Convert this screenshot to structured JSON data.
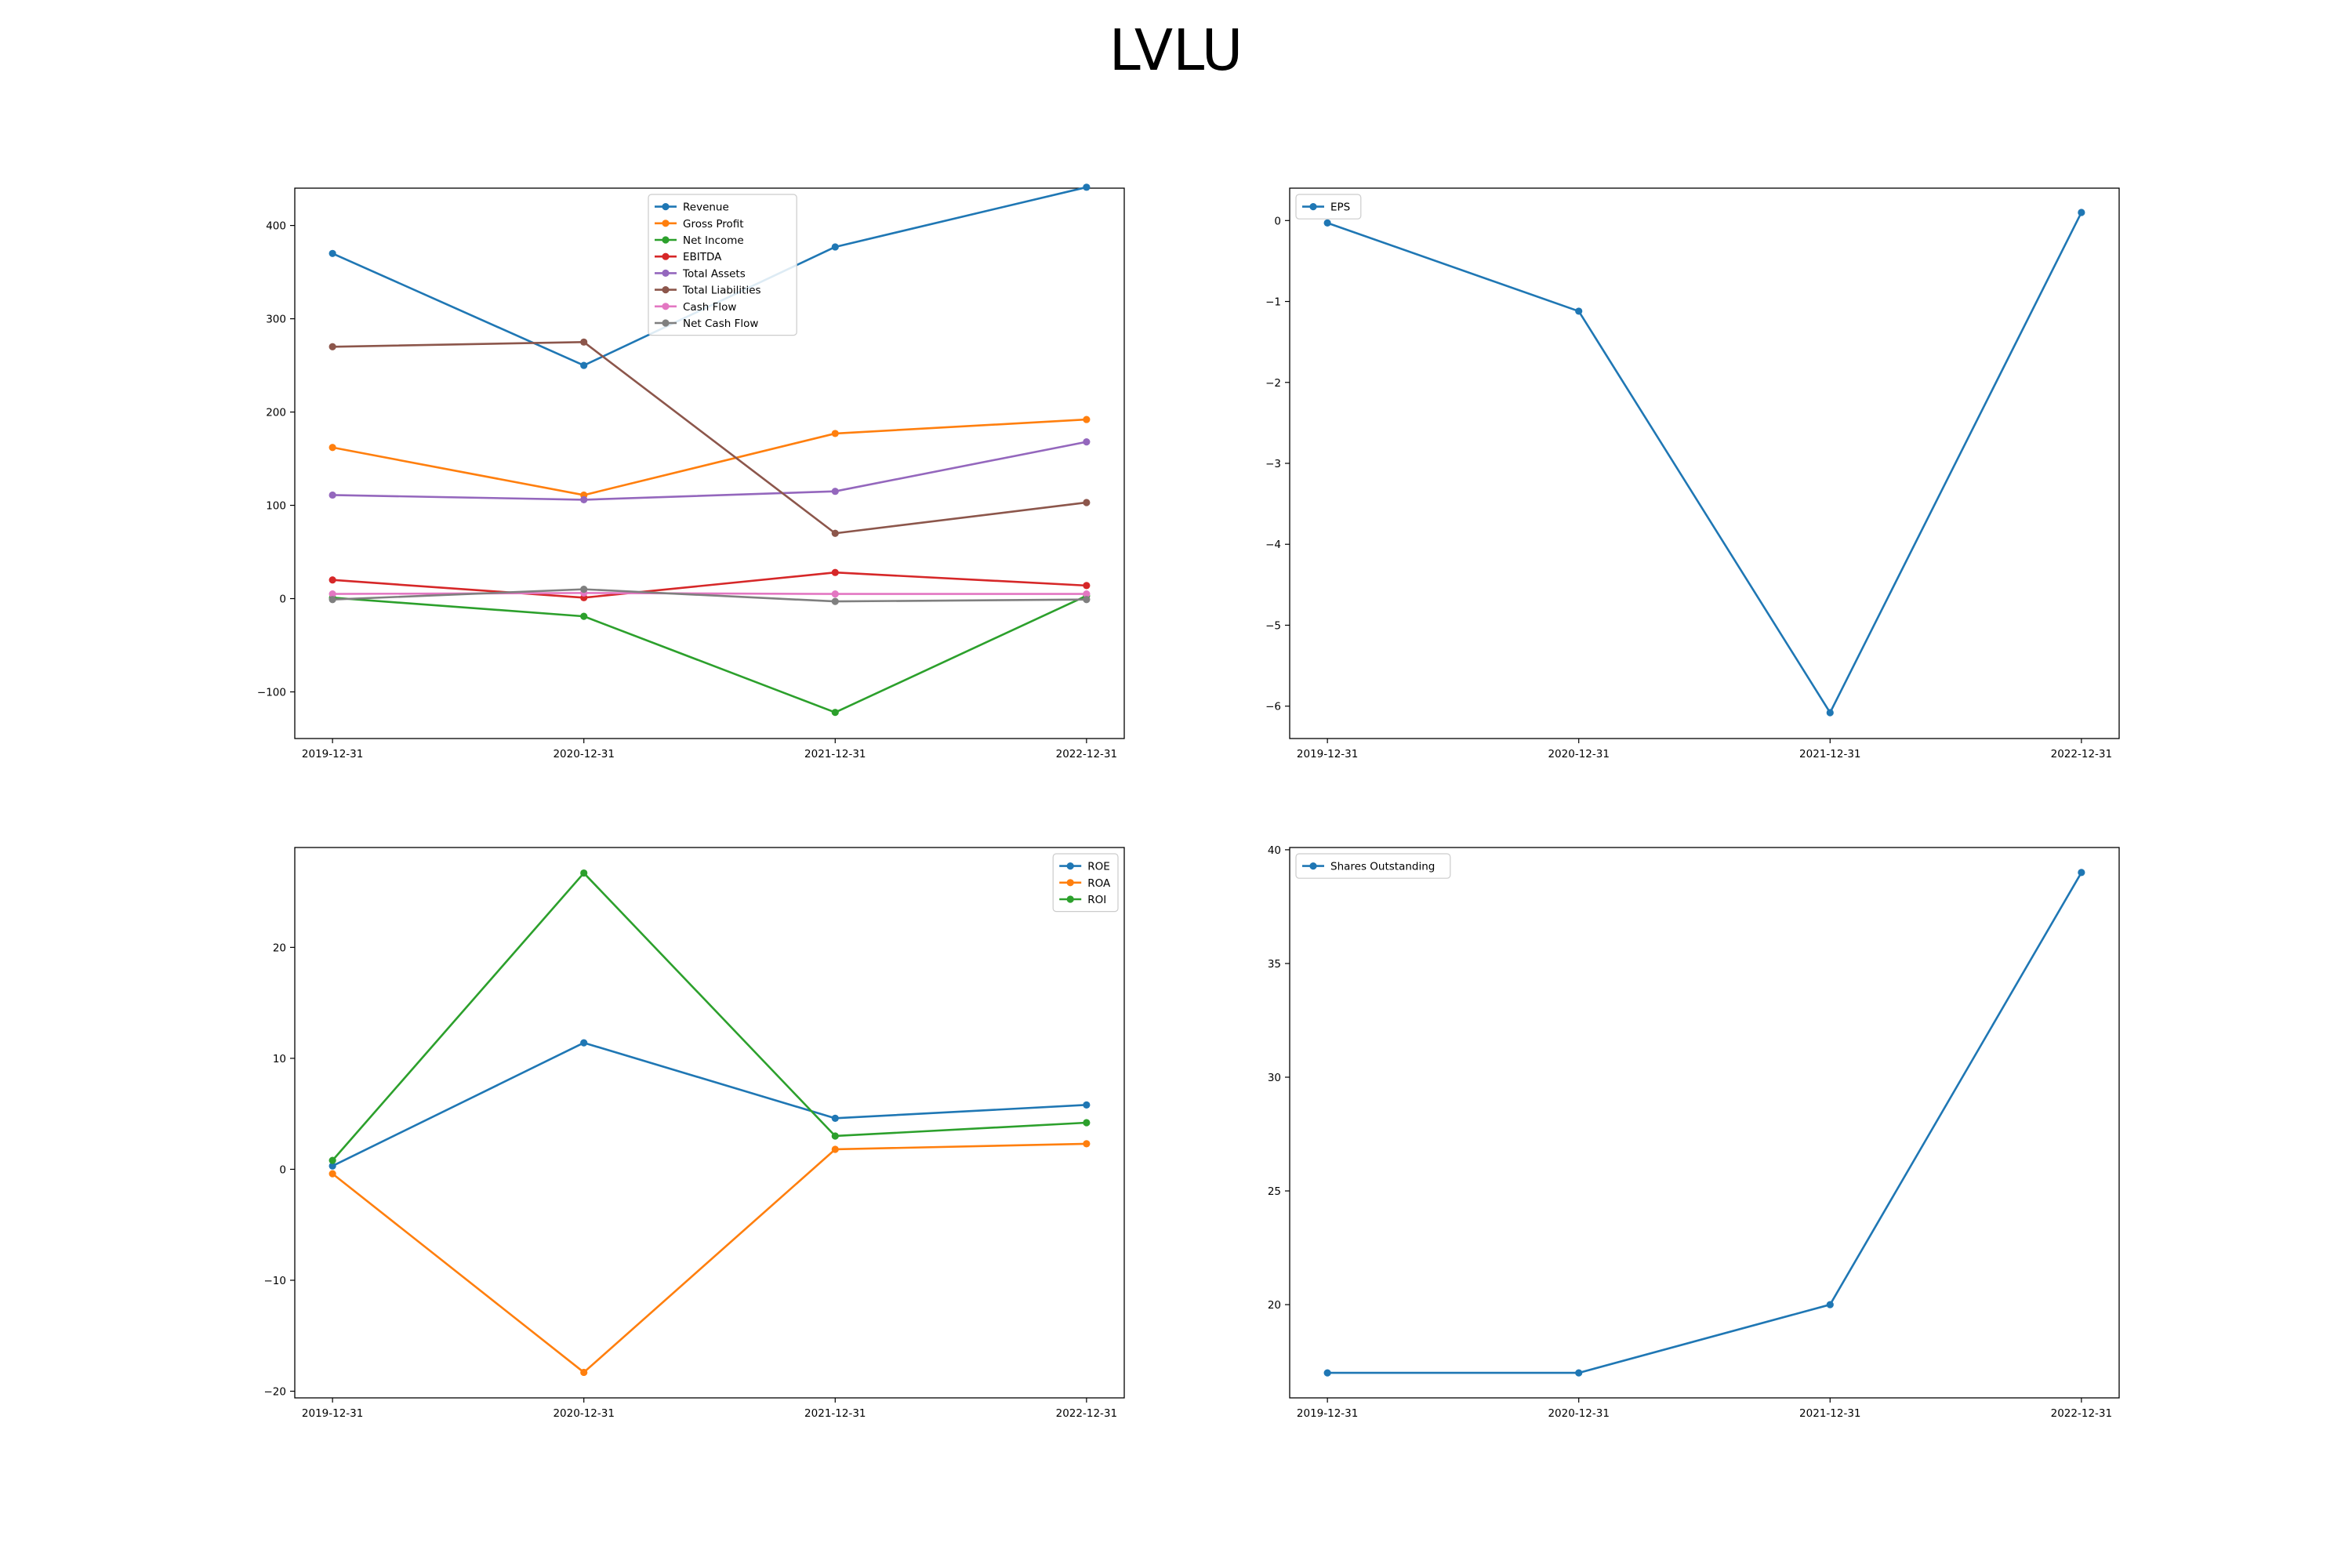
{
  "figure": {
    "title": "LVLU"
  },
  "chart_data": [
    {
      "type": "line",
      "title": "",
      "xlabel": "",
      "ylabel": "",
      "x": [
        "2019-12-31",
        "2020-12-31",
        "2021-12-31",
        "2022-12-31"
      ],
      "ylim": [
        -150,
        440
      ],
      "yticks": [
        -100,
        0,
        100,
        200,
        300,
        400
      ],
      "yticklabels": [
        "−100",
        "0",
        "100",
        "200",
        "300",
        "400"
      ],
      "grid": false,
      "legend_position": "upper center",
      "series": [
        {
          "name": "Revenue",
          "color": "#1f77b4",
          "values": [
            370,
            250,
            377,
            441
          ]
        },
        {
          "name": "Gross Profit",
          "color": "#ff7f0e",
          "values": [
            162,
            111,
            177,
            192
          ]
        },
        {
          "name": "Net Income",
          "color": "#2ca02c",
          "values": [
            1,
            -19,
            -122,
            3
          ]
        },
        {
          "name": "EBITDA",
          "color": "#d62728",
          "values": [
            20,
            1,
            28,
            14
          ]
        },
        {
          "name": "Total Assets",
          "color": "#9467bd",
          "values": [
            111,
            106,
            115,
            168
          ]
        },
        {
          "name": "Total Liabilities",
          "color": "#8c564b",
          "values": [
            270,
            275,
            70,
            103
          ]
        },
        {
          "name": "Cash Flow",
          "color": "#e377c2",
          "values": [
            5,
            6,
            5,
            5
          ]
        },
        {
          "name": "Net Cash Flow",
          "color": "#7f7f7f",
          "values": [
            -1,
            10,
            -3,
            -1
          ]
        }
      ]
    },
    {
      "type": "line",
      "title": "",
      "xlabel": "",
      "ylabel": "",
      "x": [
        "2019-12-31",
        "2020-12-31",
        "2021-12-31",
        "2022-12-31"
      ],
      "ylim": [
        -6.4,
        0.4
      ],
      "yticks": [
        0,
        -1,
        -2,
        -3,
        -4,
        -5,
        -6
      ],
      "yticklabels": [
        "0",
        "−1",
        "−2",
        "−3",
        "−4",
        "−5",
        "−6"
      ],
      "grid": false,
      "legend_position": "upper left",
      "series": [
        {
          "name": "EPS",
          "color": "#1f77b4",
          "values": [
            -0.03,
            -1.12,
            -6.08,
            0.1
          ]
        }
      ]
    },
    {
      "type": "line",
      "title": "",
      "xlabel": "",
      "ylabel": "",
      "x": [
        "2019-12-31",
        "2020-12-31",
        "2021-12-31",
        "2022-12-31"
      ],
      "ylim": [
        -20.6,
        29.0
      ],
      "yticks": [
        -20,
        -10,
        0,
        10,
        20
      ],
      "yticklabels": [
        "−20",
        "−10",
        "0",
        "10",
        "20"
      ],
      "grid": false,
      "legend_position": "upper right",
      "series": [
        {
          "name": "ROE",
          "color": "#1f77b4",
          "values": [
            0.3,
            11.4,
            4.6,
            5.8
          ]
        },
        {
          "name": "ROA",
          "color": "#ff7f0e",
          "values": [
            -0.4,
            -18.3,
            1.8,
            2.3
          ]
        },
        {
          "name": "ROI",
          "color": "#2ca02c",
          "values": [
            0.8,
            26.7,
            3.0,
            4.2
          ]
        }
      ]
    },
    {
      "type": "line",
      "title": "",
      "xlabel": "",
      "ylabel": "",
      "x": [
        "2019-12-31",
        "2020-12-31",
        "2021-12-31",
        "2022-12-31"
      ],
      "ylim": [
        15.9,
        40.1
      ],
      "yticks": [
        20,
        25,
        30,
        35,
        40
      ],
      "yticklabels": [
        "20",
        "25",
        "30",
        "35",
        "40"
      ],
      "grid": false,
      "legend_position": "upper left",
      "series": [
        {
          "name": "Shares Outstanding",
          "color": "#1f77b4",
          "values": [
            17,
            17,
            20,
            39
          ]
        }
      ]
    }
  ]
}
